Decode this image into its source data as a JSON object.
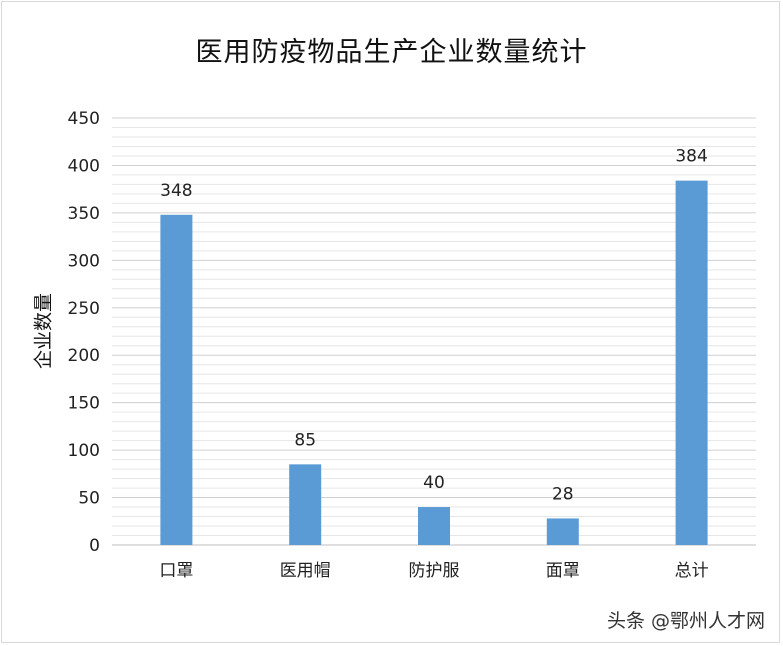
{
  "chart_data": {
    "type": "bar",
    "title": "医用防疫物品生产企业数量统计",
    "ylabel": "企业数量",
    "xlabel": "",
    "categories": [
      "口罩",
      "医用帽",
      "防护服",
      "面罩",
      "总计"
    ],
    "values": [
      348,
      85,
      40,
      28,
      384
    ],
    "data_labels": [
      "348",
      "85",
      "40",
      "28",
      "384"
    ],
    "ylim": [
      0,
      450
    ],
    "y_ticks": [
      "0",
      "50",
      "100",
      "150",
      "200",
      "250",
      "300",
      "350",
      "400",
      "450"
    ],
    "bar_color": "#5b9bd5",
    "grid": true,
    "legend": "none"
  },
  "watermark": "头条 @鄂州人才网"
}
